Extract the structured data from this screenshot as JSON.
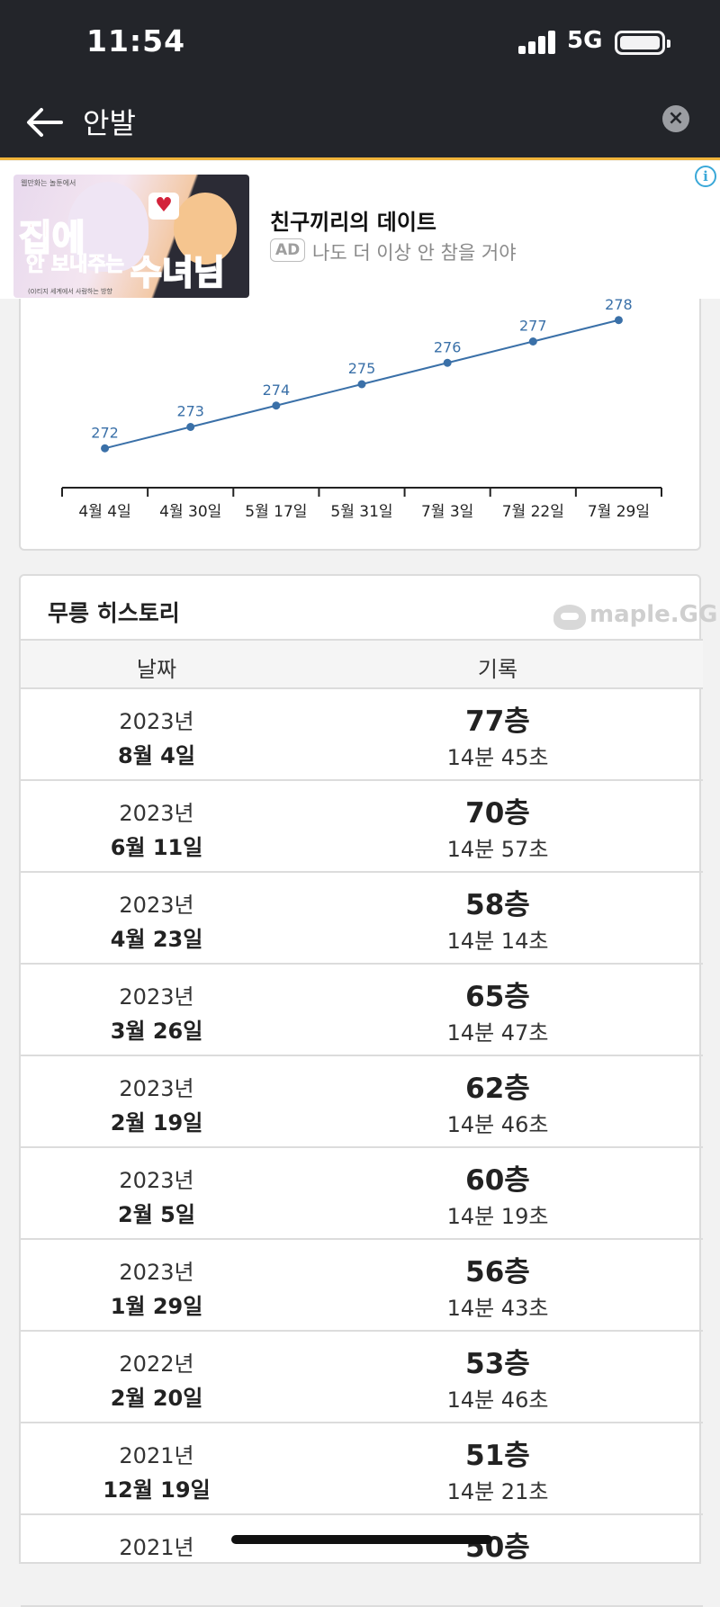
{
  "status_bar": {
    "time": "11:54",
    "network": "5G"
  },
  "search": {
    "query": "안발"
  },
  "ad": {
    "image_text": {
      "small": "웹만화는 놀툰에서",
      "line1": "집에",
      "line2": "안 보내주는",
      "line3": "수녀님",
      "footer": "(0)티지 세계에서 사람하는 방향"
    },
    "title": "친구끼리의 데이트",
    "badge": "AD",
    "description": "나도 더 이상 안 참을 거야"
  },
  "chart_data": {
    "type": "line",
    "title": "",
    "xlabel": "",
    "ylabel": "",
    "categories": [
      "4월 4일",
      "4월 30일",
      "5월 17일",
      "5월 31일",
      "7월 3일",
      "7월 22일",
      "7월 29일"
    ],
    "series": [
      {
        "values": [
          272,
          273,
          274,
          275,
          276,
          277,
          278
        ]
      }
    ],
    "ylim": [
      271,
      279
    ],
    "grid": false,
    "line_color": "#3a70a8"
  },
  "history": {
    "title": "무릉 히스토리",
    "logo_text": "maple.GG",
    "headers": {
      "date": "날짜",
      "record": "기록"
    },
    "rows": [
      {
        "year": "2023년",
        "day": "8월 4일",
        "floor": "77층",
        "time": "14분 45초"
      },
      {
        "year": "2023년",
        "day": "6월 11일",
        "floor": "70층",
        "time": "14분 57초"
      },
      {
        "year": "2023년",
        "day": "4월 23일",
        "floor": "58층",
        "time": "14분 14초"
      },
      {
        "year": "2023년",
        "day": "3월 26일",
        "floor": "65층",
        "time": "14분 47초"
      },
      {
        "year": "2023년",
        "day": "2월 19일",
        "floor": "62층",
        "time": "14분 46초"
      },
      {
        "year": "2023년",
        "day": "2월 5일",
        "floor": "60층",
        "time": "14분 19초"
      },
      {
        "year": "2023년",
        "day": "1월 29일",
        "floor": "56층",
        "time": "14분 43초"
      },
      {
        "year": "2022년",
        "day": "2월 20일",
        "floor": "53층",
        "time": "14분 46초"
      },
      {
        "year": "2021년",
        "day": "12월 19일",
        "floor": "51층",
        "time": "14분 21초"
      },
      {
        "year": "2021년",
        "day": "",
        "floor": "50층",
        "time": ""
      }
    ]
  }
}
